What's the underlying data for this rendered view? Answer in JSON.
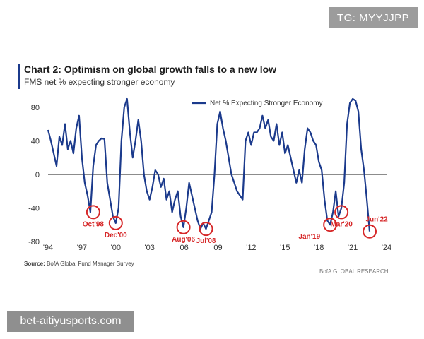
{
  "watermarks": {
    "top": "TG: MYYJJPP",
    "bottom": "bet-aitiyusports.com"
  },
  "chart_data": {
    "type": "line",
    "title": "Chart 2: Optimism on global growth falls to a new low",
    "subtitle": "FMS net % expecting stronger economy",
    "xlabel": "",
    "ylabel": "",
    "xlim": [
      1994.0,
      2024.0
    ],
    "ylim": [
      -80,
      90
    ],
    "x_tick_labels": [
      "'94",
      "'97",
      "'00",
      "'03",
      "'06",
      "'09",
      "'12",
      "'15",
      "'18",
      "'21",
      "'24"
    ],
    "y_tick_labels": [
      "80",
      "40",
      "0",
      "-40",
      "-80"
    ],
    "grid": false,
    "zero_line": true,
    "legend": "top-center",
    "series": [
      {
        "name": "Net % Expecting Stronger Economy",
        "color": "#1b3a8c",
        "x": [
          1994.0,
          1994.25,
          1994.5,
          1994.75,
          1995.0,
          1995.25,
          1995.5,
          1995.75,
          1996.0,
          1996.25,
          1996.5,
          1996.75,
          1997.0,
          1997.25,
          1997.5,
          1997.75,
          1998.0,
          1998.25,
          1998.5,
          1998.75,
          1999.0,
          1999.25,
          1999.5,
          1999.75,
          2000.0,
          2000.25,
          2000.5,
          2000.75,
          2001.0,
          2001.25,
          2001.5,
          2001.75,
          2002.0,
          2002.25,
          2002.5,
          2002.75,
          2003.0,
          2003.25,
          2003.5,
          2003.75,
          2004.0,
          2004.25,
          2004.5,
          2004.75,
          2005.0,
          2005.25,
          2005.5,
          2005.75,
          2006.0,
          2006.25,
          2006.5,
          2006.75,
          2007.0,
          2007.25,
          2007.5,
          2007.75,
          2008.0,
          2008.25,
          2008.5,
          2008.75,
          2009.0,
          2009.25,
          2009.5,
          2009.75,
          2010.0,
          2010.25,
          2010.5,
          2010.75,
          2011.0,
          2011.25,
          2011.5,
          2011.75,
          2012.0,
          2012.25,
          2012.5,
          2012.75,
          2013.0,
          2013.25,
          2013.5,
          2013.75,
          2014.0,
          2014.25,
          2014.5,
          2014.75,
          2015.0,
          2015.25,
          2015.5,
          2015.75,
          2016.0,
          2016.25,
          2016.5,
          2016.75,
          2017.0,
          2017.25,
          2017.5,
          2017.75,
          2018.0,
          2018.25,
          2018.5,
          2018.75,
          2019.0,
          2019.25,
          2019.5,
          2019.75,
          2020.0,
          2020.25,
          2020.5,
          2020.75,
          2021.0,
          2021.25,
          2021.5,
          2021.75,
          2022.0,
          2022.25,
          2022.5
        ],
        "y": [
          53,
          40,
          25,
          10,
          45,
          35,
          60,
          30,
          40,
          25,
          55,
          70,
          20,
          -10,
          -25,
          -45,
          10,
          35,
          40,
          43,
          42,
          -10,
          -30,
          -50,
          -58,
          -40,
          40,
          80,
          90,
          50,
          20,
          40,
          65,
          40,
          0,
          -20,
          -30,
          -15,
          5,
          0,
          -15,
          -5,
          -30,
          -20,
          -45,
          -30,
          -20,
          -50,
          -63,
          -40,
          -10,
          -25,
          -40,
          -55,
          -65,
          -58,
          -65,
          -55,
          -45,
          0,
          60,
          75,
          55,
          40,
          20,
          0,
          -10,
          -20,
          -25,
          -30,
          40,
          50,
          35,
          50,
          50,
          55,
          70,
          55,
          65,
          45,
          40,
          60,
          35,
          50,
          25,
          35,
          20,
          5,
          -10,
          5,
          -10,
          30,
          55,
          50,
          40,
          35,
          15,
          5,
          -30,
          -55,
          -60,
          -45,
          -20,
          -50,
          -40,
          -10,
          60,
          85,
          90,
          88,
          75,
          30,
          5,
          -30,
          -68
        ]
      }
    ],
    "annotations": [
      {
        "label": "Oct'98",
        "x": 1998.0,
        "y": -45
      },
      {
        "label": "Dec'00",
        "x": 2000.0,
        "y": -58
      },
      {
        "label": "Aug'06",
        "x": 2006.0,
        "y": -63
      },
      {
        "label": "Jul'08",
        "x": 2008.0,
        "y": -65
      },
      {
        "label": "Jan'19",
        "x": 2019.0,
        "y": -60
      },
      {
        "label": "Mar'20",
        "x": 2020.0,
        "y": -45
      },
      {
        "label": "Jun'22",
        "x": 2022.5,
        "y": -68
      }
    ]
  },
  "footer": {
    "source_label": "Source:",
    "source_text": "BofA Global Fund Manager Survey",
    "brand": "BofA GLOBAL RESEARCH"
  }
}
